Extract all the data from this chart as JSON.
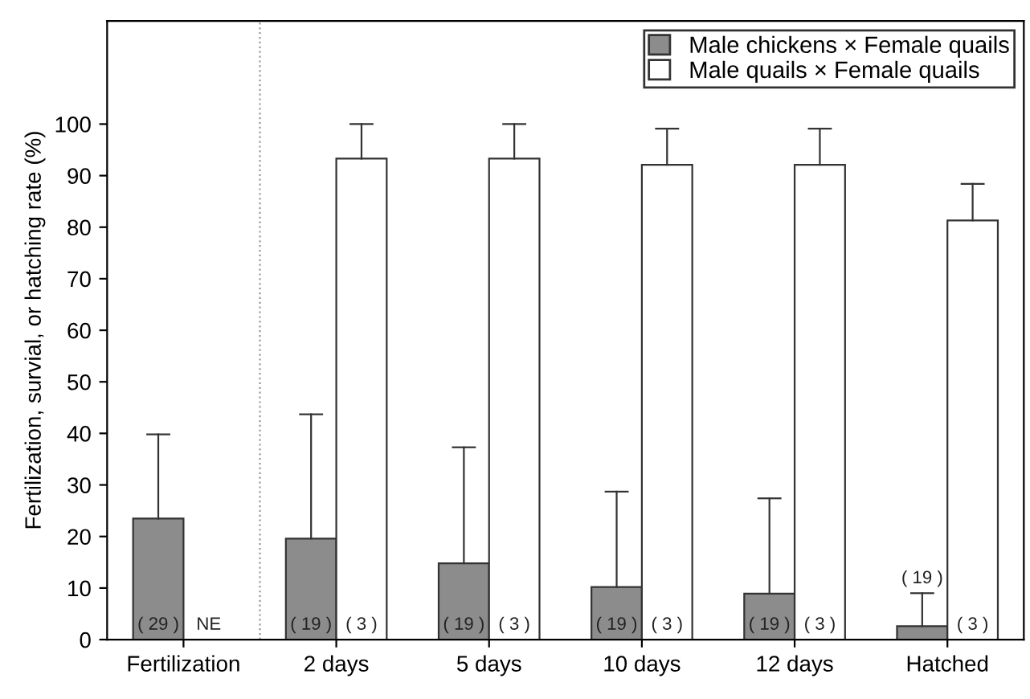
{
  "chart_data": {
    "type": "bar",
    "ylabel": "Fertilization, survial, or hatching rate (%)",
    "categories": [
      "Fertilization",
      "2 days",
      "5 days",
      "10 days",
      "12 days",
      "Hatched"
    ],
    "series": [
      {
        "name": "Male chickens × Female quails",
        "color": "#8c8c8c",
        "values": [
          23.5,
          19.6,
          14.8,
          10.2,
          8.9,
          2.6
        ],
        "errors": [
          [
            23.5,
            39.8
          ],
          [
            19.6,
            43.7
          ],
          [
            14.8,
            37.3
          ],
          [
            10.2,
            28.7
          ],
          [
            8.9,
            27.4
          ],
          [
            2.6,
            9.0
          ]
        ]
      },
      {
        "name": "Male quails × Female quails",
        "color": "#ffffff",
        "values": [
          null,
          93.3,
          93.3,
          92.1,
          92.1,
          81.3
        ],
        "errors": [
          null,
          [
            93.3,
            100
          ],
          [
            93.3,
            100
          ],
          [
            92.1,
            99.1
          ],
          [
            92.1,
            99.1
          ],
          [
            81.3,
            88.4
          ]
        ]
      }
    ],
    "annotations": [
      "( 29 )",
      "NE",
      "( 19 )",
      "( 3 )",
      "( 19 )",
      "( 3 )",
      "( 19 )",
      "( 3 )",
      "( 19 )",
      "( 3 )",
      "( 19 )",
      "( 3 )"
    ],
    "ylim": [
      0,
      120
    ],
    "yticks": [
      0,
      10,
      20,
      30,
      40,
      50,
      60,
      70,
      80,
      90,
      100
    ],
    "legend": "top right",
    "grid": false
  }
}
